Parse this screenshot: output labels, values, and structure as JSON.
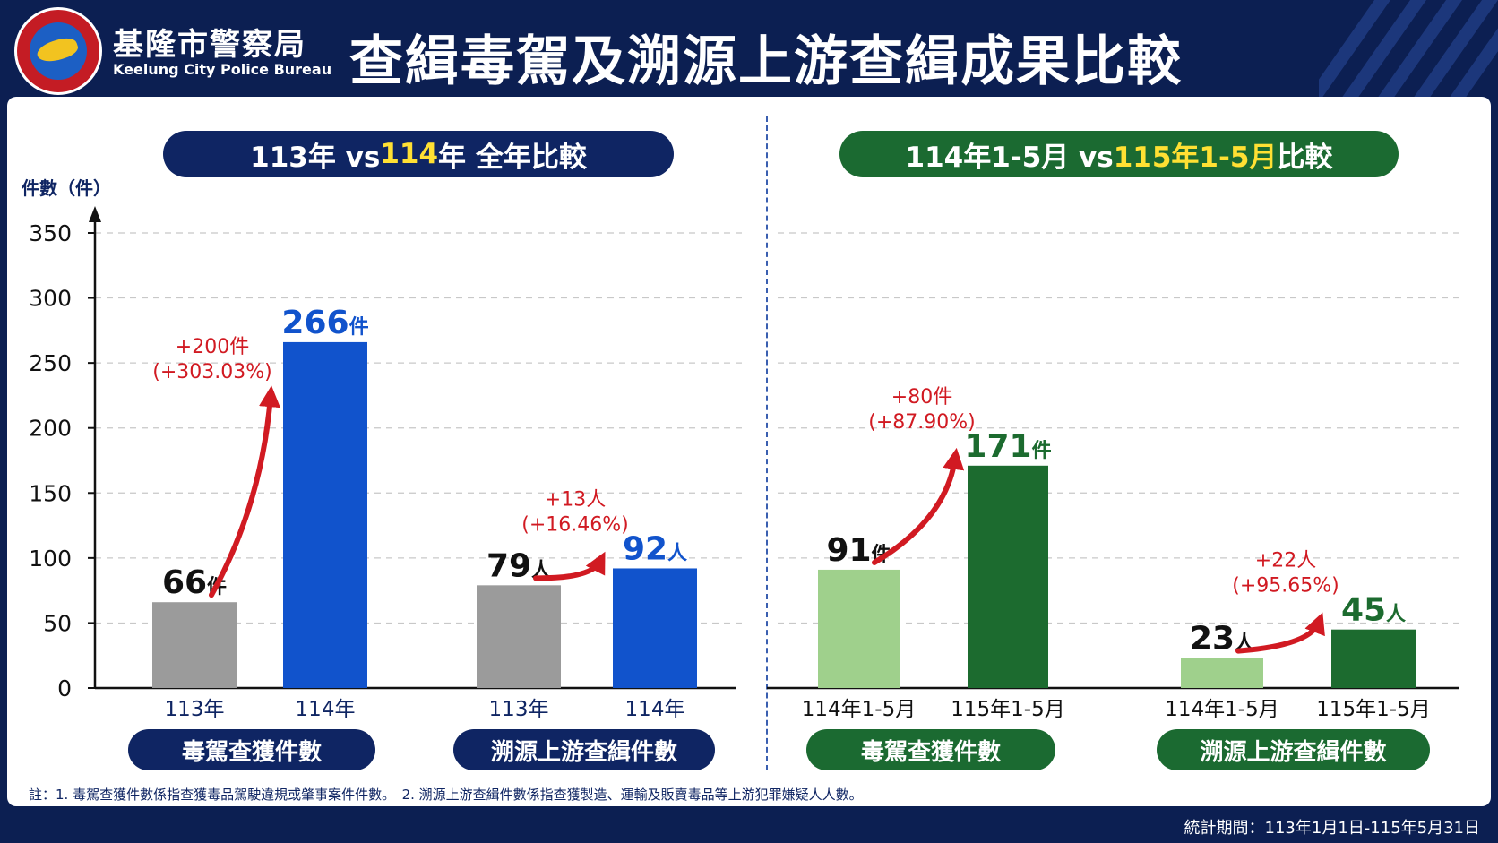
{
  "header": {
    "agency_cn": "基隆市警察局",
    "agency_en": "Keelung City Police Bureau",
    "title": "查緝毒駕及溯源上游查緝成果比較",
    "logo_ring_text": "基隆市警察局",
    "logo_en": "Keelung City Police Bureau"
  },
  "left_panel": {
    "title_part1": "113年 vs ",
    "title_highlight": "114",
    "title_part2": "年 全年比較"
  },
  "right_panel": {
    "title_part1": "114年1-5月 vs ",
    "title_highlight": "115年1-5月",
    "title_part2": " 比較"
  },
  "colors": {
    "navy": "#0f2563",
    "dark_green": "#1b6a31",
    "gray_bar": "#9b9b9b",
    "blue_bar": "#1153cc",
    "light_green_bar": "#9fd08c",
    "green_bar": "#1c6b2f",
    "increase_red": "#d11a22",
    "highlight_yellow": "#ffe033"
  },
  "chart_data": [
    {
      "type": "bar",
      "ylabel": "件數（件）",
      "ylim": [
        0,
        350
      ],
      "yticks": [
        0,
        50,
        100,
        150,
        200,
        250,
        300,
        350
      ],
      "ytick_labels": [
        "0",
        "50",
        "100",
        "150",
        "200",
        "250",
        "300",
        "350"
      ],
      "grid": true,
      "groups": [
        {
          "name": "毒駕查獲件數",
          "bars": [
            {
              "category": "113年",
              "value": 66,
              "label": "66",
              "unit": "件",
              "style": "prev"
            },
            {
              "category": "114年",
              "value": 266,
              "label": "266",
              "unit": "件",
              "style": "curr"
            }
          ],
          "change": [
            "+200件",
            "(+303.03%)"
          ]
        },
        {
          "name": "溯源上游查緝件數",
          "bars": [
            {
              "category": "113年",
              "value": 79,
              "label": "79",
              "unit": "人",
              "style": "prev"
            },
            {
              "category": "114年",
              "value": 92,
              "label": "92",
              "unit": "人",
              "style": "curr"
            }
          ],
          "change": [
            "+13人",
            "(+16.46%)"
          ]
        }
      ]
    },
    {
      "type": "bar",
      "ylim": [
        0,
        350
      ],
      "grid": true,
      "groups": [
        {
          "name": "毒駕查獲件數",
          "bars": [
            {
              "category": "114年1-5月",
              "value": 91,
              "label": "91",
              "unit": "件",
              "style": "prev"
            },
            {
              "category": "115年1-5月",
              "value": 171,
              "label": "171",
              "unit": "件",
              "style": "curr"
            }
          ],
          "change": [
            "+80件",
            "(+87.90%)"
          ]
        },
        {
          "name": "溯源上游查緝件數",
          "bars": [
            {
              "category": "114年1-5月",
              "value": 23,
              "label": "23",
              "unit": "人",
              "style": "prev"
            },
            {
              "category": "115年1-5月",
              "value": 45,
              "label": "45",
              "unit": "人",
              "style": "curr"
            }
          ],
          "change": [
            "+22人",
            "(+95.65%)"
          ]
        }
      ]
    }
  ],
  "footnote": "註：1. 毒駕查獲件數係指查獲毒品駕駛違規或肇事案件件數。　2. 溯源上游查緝件數係指查獲製造、運輸及販賣毒品等上游犯罪嫌疑人人數。",
  "period": "統計期間：113年1月1日-115年5月31日"
}
